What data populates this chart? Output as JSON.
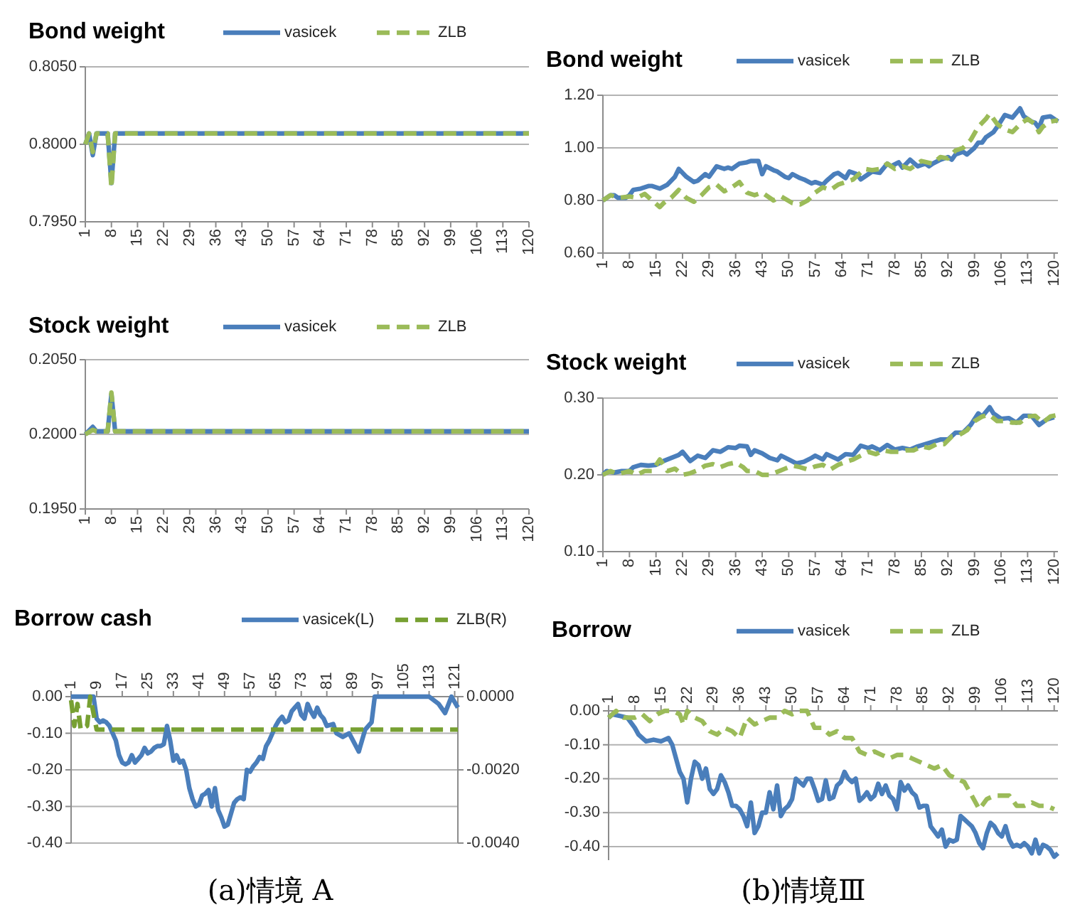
{
  "chart_data": [
    {
      "type": "line",
      "title": "Bond weight",
      "legend": "top",
      "grid": "y",
      "xlim": [
        1,
        120
      ],
      "xticks": [
        1,
        8,
        15,
        22,
        29,
        36,
        43,
        50,
        57,
        64,
        71,
        78,
        85,
        92,
        99,
        106,
        113,
        120
      ],
      "ylim": [
        0.795,
        0.805
      ],
      "yticks": [
        {
          "value": 0.795,
          "label": "0.7950"
        },
        {
          "value": 0.8,
          "label": "0.8000"
        },
        {
          "value": 0.805,
          "label": "0.8050"
        }
      ],
      "series": [
        {
          "name": "vasicek",
          "color": "#4a7ebb",
          "line_style": "solid",
          "x": [
            1,
            2,
            3,
            4,
            7,
            8,
            9,
            120
          ],
          "values": [
            0.8,
            0.8007,
            0.7993,
            0.8007,
            0.8007,
            0.7975,
            0.8007,
            0.8007
          ]
        },
        {
          "name": "ZLB",
          "color": "#9bbb59",
          "line_style": "dashed",
          "x": [
            1,
            2,
            3,
            4,
            7,
            8,
            9,
            120
          ],
          "values": [
            0.8,
            0.8007,
            0.7995,
            0.8007,
            0.8007,
            0.7972,
            0.8007,
            0.8007
          ]
        }
      ]
    },
    {
      "type": "line",
      "title": "Stock weight",
      "legend": "top",
      "grid": "y",
      "xlim": [
        1,
        120
      ],
      "xticks": [
        1,
        8,
        15,
        22,
        29,
        36,
        43,
        50,
        57,
        64,
        71,
        78,
        85,
        92,
        99,
        106,
        113,
        120
      ],
      "ylim": [
        0.195,
        0.205
      ],
      "yticks": [
        {
          "value": 0.195,
          "label": "0.1950"
        },
        {
          "value": 0.2,
          "label": "0.2000"
        },
        {
          "value": 0.205,
          "label": "0.2050"
        }
      ],
      "series": [
        {
          "name": "vasicek",
          "color": "#4a7ebb",
          "line_style": "solid",
          "x": [
            1,
            3,
            4,
            7,
            8,
            9,
            120
          ],
          "values": [
            0.2,
            0.2005,
            0.2002,
            0.2002,
            0.2027,
            0.2002,
            0.2002
          ]
        },
        {
          "name": "ZLB",
          "color": "#9bbb59",
          "line_style": "dashed",
          "x": [
            1,
            3,
            4,
            7,
            8,
            9,
            120
          ],
          "values": [
            0.2,
            0.2003,
            0.2002,
            0.2002,
            0.2028,
            0.2002,
            0.2002
          ]
        }
      ]
    },
    {
      "type": "line",
      "title": "Borrow cash",
      "legend": "top",
      "grid": "y",
      "annotations": [
        "(a)情境 A"
      ],
      "xlim": [
        1,
        122
      ],
      "xticks": [
        1,
        9,
        17,
        25,
        33,
        41,
        49,
        57,
        65,
        73,
        81,
        89,
        97,
        105,
        113,
        121
      ],
      "ylim": [
        -0.4,
        0
      ],
      "yticks": [
        {
          "value": 0,
          "label": "0.00"
        },
        {
          "value": -0.1,
          "label": "-0.10"
        },
        {
          "value": -0.2,
          "label": "-0.20"
        },
        {
          "value": -0.3,
          "label": "-0.30"
        },
        {
          "value": -0.4,
          "label": "-0.40"
        }
      ],
      "y2lim": [
        -0.004,
        0
      ],
      "y2ticks": [
        {
          "value": 0,
          "label": "0.0000"
        },
        {
          "value": -0.002,
          "label": "-0.0020"
        },
        {
          "value": -0.004,
          "label": "-0.0040"
        }
      ],
      "series": [
        {
          "name": "vasicek(L)",
          "color": "#4a7ebb",
          "line_style": "solid",
          "x": [
            1,
            5,
            8,
            9,
            10,
            11,
            12,
            13,
            14,
            15,
            16,
            17,
            18,
            19,
            20,
            21,
            22,
            23,
            24,
            25,
            26,
            27,
            28,
            29,
            30,
            31,
            32,
            33,
            34,
            35,
            36,
            37,
            38,
            39,
            40,
            41,
            42,
            43,
            44,
            45,
            46,
            47,
            48,
            49,
            50,
            51,
            52,
            53,
            54,
            55,
            56,
            57,
            58,
            59,
            60,
            61,
            62,
            63,
            64,
            65,
            66,
            67,
            68,
            69,
            70,
            71,
            72,
            73,
            74,
            75,
            76,
            77,
            78,
            79,
            80,
            81,
            83,
            84,
            86,
            88,
            91,
            93,
            95,
            96,
            98,
            111,
            113,
            116,
            118,
            120,
            122
          ],
          "values": [
            0,
            0,
            0,
            -0.06,
            -0.07,
            -0.065,
            -0.07,
            -0.08,
            -0.1,
            -0.12,
            -0.16,
            -0.18,
            -0.185,
            -0.18,
            -0.16,
            -0.18,
            -0.17,
            -0.16,
            -0.14,
            -0.155,
            -0.15,
            -0.14,
            -0.135,
            -0.135,
            -0.13,
            -0.08,
            -0.12,
            -0.175,
            -0.16,
            -0.18,
            -0.175,
            -0.2,
            -0.25,
            -0.28,
            -0.3,
            -0.295,
            -0.27,
            -0.265,
            -0.255,
            -0.3,
            -0.25,
            -0.31,
            -0.33,
            -0.355,
            -0.35,
            -0.32,
            -0.29,
            -0.28,
            -0.275,
            -0.28,
            -0.2,
            -0.205,
            -0.19,
            -0.18,
            -0.165,
            -0.17,
            -0.135,
            -0.12,
            -0.1,
            -0.08,
            -0.065,
            -0.055,
            -0.07,
            -0.065,
            -0.04,
            -0.03,
            -0.02,
            -0.05,
            -0.06,
            -0.02,
            -0.04,
            -0.055,
            -0.03,
            -0.05,
            -0.06,
            -0.08,
            -0.075,
            -0.1,
            -0.11,
            -0.1,
            -0.15,
            -0.09,
            -0.07,
            0,
            0,
            0,
            0,
            -0.02,
            -0.045,
            0,
            -0.03
          ]
        },
        {
          "name": "ZLB(R)",
          "color": "#77a032",
          "line_style": "dashed",
          "axis": "y2",
          "x": [
            1,
            2,
            3,
            4,
            6,
            7,
            9,
            122
          ],
          "values": [
            -0.0001,
            -0.0008,
            -0.0002,
            -0.0009,
            -0.0008,
            0,
            -0.0009,
            -0.0009
          ]
        }
      ]
    },
    {
      "type": "line",
      "title": "Bond weight",
      "legend": "top",
      "grid": "y",
      "xlim": [
        1,
        121
      ],
      "xticks": [
        1,
        8,
        15,
        22,
        29,
        36,
        43,
        50,
        57,
        64,
        71,
        78,
        85,
        92,
        99,
        106,
        113,
        120
      ],
      "ylim": [
        0.6,
        1.2
      ],
      "yticks": [
        {
          "value": 0.6,
          "label": "0.60"
        },
        {
          "value": 0.8,
          "label": "0.80"
        },
        {
          "value": 1,
          "label": "1.00"
        },
        {
          "value": 1.2,
          "label": "1.20"
        }
      ],
      "series": [
        {
          "name": "vasicek",
          "color": "#4a7ebb",
          "line_style": "solid",
          "x": [
            1,
            2,
            3,
            4,
            5,
            7,
            8,
            9,
            11,
            13,
            14,
            16,
            18,
            20,
            21,
            23,
            25,
            26,
            28,
            29,
            31,
            33,
            34,
            35,
            37,
            39,
            40,
            42,
            43,
            44,
            46,
            47,
            49,
            50,
            51,
            53,
            54,
            56,
            57,
            59,
            60,
            62,
            63,
            65,
            66,
            68,
            69,
            71,
            72,
            74,
            76,
            77,
            79,
            80,
            82,
            84,
            86,
            87,
            88,
            90,
            92,
            93,
            94,
            96,
            97,
            99,
            100,
            101,
            102,
            104,
            105,
            107,
            109,
            111,
            112,
            114,
            115,
            116,
            117,
            119,
            121
          ],
          "values": [
            0.8,
            0.81,
            0.82,
            0.82,
            0.81,
            0.81,
            0.82,
            0.84,
            0.845,
            0.855,
            0.855,
            0.845,
            0.86,
            0.89,
            0.92,
            0.89,
            0.87,
            0.875,
            0.9,
            0.89,
            0.93,
            0.92,
            0.925,
            0.92,
            0.94,
            0.945,
            0.95,
            0.95,
            0.9,
            0.93,
            0.915,
            0.91,
            0.89,
            0.885,
            0.9,
            0.885,
            0.88,
            0.865,
            0.87,
            0.86,
            0.875,
            0.9,
            0.905,
            0.885,
            0.91,
            0.9,
            0.88,
            0.9,
            0.91,
            0.905,
            0.94,
            0.93,
            0.945,
            0.925,
            0.955,
            0.93,
            0.94,
            0.93,
            0.94,
            0.955,
            0.965,
            0.955,
            0.975,
            0.985,
            0.975,
            1.0,
            1.02,
            1.02,
            1.04,
            1.06,
            1.08,
            1.125,
            1.115,
            1.15,
            1.12,
            1.1,
            1.095,
            1.075,
            1.115,
            1.12,
            1.1
          ]
        },
        {
          "name": "ZLB",
          "color": "#9bbb59",
          "line_style": "dashed",
          "x": [
            1,
            3,
            5,
            8,
            10,
            12,
            14,
            16,
            17,
            19,
            21,
            23,
            25,
            27,
            29,
            31,
            33,
            35,
            37,
            39,
            41,
            43,
            46,
            48,
            51,
            53,
            55,
            57,
            59,
            61,
            63,
            65,
            67,
            70,
            72,
            74,
            76,
            78,
            80,
            82,
            85,
            88,
            90,
            92,
            94,
            96,
            98,
            100,
            102,
            103,
            105,
            107,
            109,
            111,
            113,
            115,
            116,
            117,
            119,
            121
          ],
          "values": [
            0.8,
            0.82,
            0.81,
            0.815,
            0.81,
            0.825,
            0.8,
            0.775,
            0.79,
            0.81,
            0.84,
            0.81,
            0.795,
            0.82,
            0.85,
            0.86,
            0.835,
            0.85,
            0.87,
            0.83,
            0.82,
            0.83,
            0.8,
            0.815,
            0.79,
            0.785,
            0.8,
            0.83,
            0.85,
            0.84,
            0.86,
            0.87,
            0.88,
            0.92,
            0.915,
            0.92,
            0.94,
            0.92,
            0.93,
            0.92,
            0.95,
            0.94,
            0.965,
            0.96,
            0.99,
            1.0,
            1.03,
            1.08,
            1.11,
            1.13,
            1.09,
            1.07,
            1.06,
            1.09,
            1.11,
            1.09,
            1.06,
            1.08,
            1.1,
            1.105
          ]
        }
      ]
    },
    {
      "type": "line",
      "title": "Stock weight",
      "legend": "top",
      "grid": "y",
      "xlim": [
        1,
        121
      ],
      "xticks": [
        1,
        8,
        15,
        22,
        29,
        36,
        43,
        50,
        57,
        64,
        71,
        78,
        85,
        92,
        99,
        106,
        113,
        120
      ],
      "ylim": [
        0.1,
        0.3
      ],
      "yticks": [
        {
          "value": 0.1,
          "label": "0.10"
        },
        {
          "value": 0.2,
          "label": "0.20"
        },
        {
          "value": 0.3,
          "label": "0.30"
        }
      ],
      "series": [
        {
          "name": "vasicek",
          "color": "#4a7ebb",
          "line_style": "solid",
          "x": [
            1,
            2,
            4,
            6,
            8,
            9,
            11,
            13,
            15,
            17,
            19,
            21,
            22,
            24,
            26,
            28,
            30,
            32,
            34,
            36,
            37,
            39,
            40,
            41,
            43,
            45,
            47,
            48,
            50,
            52,
            54,
            56,
            57,
            59,
            60,
            63,
            65,
            67,
            69,
            71,
            72,
            74,
            76,
            78,
            80,
            82,
            84,
            86,
            88,
            90,
            92,
            94,
            96,
            98,
            100,
            101,
            103,
            104,
            106,
            108,
            110,
            112,
            114,
            116,
            118,
            120
          ],
          "values": [
            0.2,
            0.205,
            0.203,
            0.205,
            0.205,
            0.21,
            0.213,
            0.212,
            0.213,
            0.218,
            0.222,
            0.226,
            0.23,
            0.218,
            0.225,
            0.222,
            0.232,
            0.23,
            0.236,
            0.235,
            0.238,
            0.237,
            0.226,
            0.232,
            0.228,
            0.222,
            0.219,
            0.225,
            0.22,
            0.215,
            0.217,
            0.222,
            0.225,
            0.22,
            0.227,
            0.22,
            0.227,
            0.226,
            0.238,
            0.235,
            0.237,
            0.232,
            0.239,
            0.233,
            0.235,
            0.233,
            0.237,
            0.24,
            0.243,
            0.246,
            0.246,
            0.255,
            0.255,
            0.265,
            0.28,
            0.276,
            0.288,
            0.28,
            0.273,
            0.274,
            0.268,
            0.277,
            0.277,
            0.265,
            0.272,
            0.275
          ]
        },
        {
          "name": "ZLB",
          "color": "#9bbb59",
          "line_style": "dashed",
          "x": [
            1,
            3,
            5,
            8,
            10,
            12,
            14,
            16,
            17,
            18,
            20,
            22,
            24,
            26,
            28,
            30,
            32,
            34,
            36,
            38,
            39,
            41,
            43,
            45,
            47,
            49,
            51,
            53,
            55,
            57,
            59,
            61,
            63,
            65,
            67,
            69,
            71,
            73,
            75,
            77,
            79,
            81,
            83,
            85,
            87,
            89,
            91,
            93,
            95,
            97,
            99,
            101,
            103,
            105,
            107,
            109,
            111,
            113,
            115,
            117,
            119,
            121
          ],
          "values": [
            0.2,
            0.205,
            0.201,
            0.205,
            0.2,
            0.205,
            0.205,
            0.22,
            0.213,
            0.205,
            0.208,
            0.2,
            0.202,
            0.206,
            0.212,
            0.214,
            0.21,
            0.214,
            0.216,
            0.21,
            0.205,
            0.205,
            0.2,
            0.2,
            0.204,
            0.208,
            0.212,
            0.21,
            0.207,
            0.211,
            0.213,
            0.207,
            0.213,
            0.217,
            0.22,
            0.225,
            0.23,
            0.227,
            0.232,
            0.23,
            0.23,
            0.232,
            0.232,
            0.237,
            0.235,
            0.24,
            0.24,
            0.25,
            0.252,
            0.258,
            0.27,
            0.276,
            0.278,
            0.27,
            0.27,
            0.268,
            0.268,
            0.276,
            0.277,
            0.268,
            0.276,
            0.278
          ]
        }
      ]
    },
    {
      "type": "line",
      "title": "Borrow",
      "legend": "top",
      "grid": "y",
      "annotations": [
        "(b)情境Ⅲ"
      ],
      "xlim": [
        1,
        121
      ],
      "xticks": [
        1,
        8,
        15,
        22,
        29,
        36,
        43,
        50,
        57,
        64,
        71,
        78,
        85,
        92,
        99,
        106,
        113,
        120
      ],
      "ylim": [
        -0.44,
        0
      ],
      "yticks": [
        {
          "value": 0,
          "label": "0.00"
        },
        {
          "value": -0.1,
          "label": "-0.10"
        },
        {
          "value": -0.2,
          "label": "-0.20"
        },
        {
          "value": -0.3,
          "label": "-0.30"
        },
        {
          "value": -0.4,
          "label": "-0.40"
        }
      ],
      "series": [
        {
          "name": "vasicek",
          "color": "#4a7ebb",
          "line_style": "solid",
          "x": [
            1,
            2,
            4,
            6,
            8,
            9,
            10,
            11,
            13,
            15,
            17,
            18,
            19,
            20,
            21,
            22,
            23,
            24,
            25,
            26,
            27,
            28,
            29,
            30,
            31,
            32,
            33,
            34,
            35,
            36,
            37,
            38,
            39,
            40,
            41,
            42,
            43,
            44,
            45,
            46,
            47,
            48,
            49,
            50,
            51,
            52,
            53,
            54,
            55,
            56,
            57,
            58,
            59,
            60,
            61,
            62,
            63,
            64,
            65,
            66,
            67,
            68,
            69,
            70,
            71,
            72,
            73,
            74,
            75,
            76,
            77,
            78,
            79,
            80,
            81,
            82,
            83,
            84,
            85,
            86,
            87,
            88,
            89,
            90,
            91,
            92,
            93,
            94,
            95,
            96,
            97,
            98,
            99,
            100,
            101,
            102,
            103,
            104,
            105,
            106,
            107,
            108,
            109,
            110,
            111,
            112,
            113,
            114,
            115,
            116,
            117,
            118,
            119,
            120,
            121
          ],
          "values": [
            -0.02,
            -0.01,
            -0.015,
            -0.02,
            -0.05,
            -0.07,
            -0.08,
            -0.09,
            -0.085,
            -0.09,
            -0.08,
            -0.1,
            -0.14,
            -0.18,
            -0.2,
            -0.27,
            -0.2,
            -0.15,
            -0.16,
            -0.2,
            -0.17,
            -0.23,
            -0.245,
            -0.23,
            -0.19,
            -0.21,
            -0.24,
            -0.28,
            -0.28,
            -0.29,
            -0.31,
            -0.34,
            -0.27,
            -0.36,
            -0.34,
            -0.3,
            -0.3,
            -0.24,
            -0.29,
            -0.22,
            -0.31,
            -0.29,
            -0.28,
            -0.26,
            -0.2,
            -0.21,
            -0.22,
            -0.2,
            -0.2,
            -0.23,
            -0.265,
            -0.26,
            -0.205,
            -0.26,
            -0.255,
            -0.22,
            -0.21,
            -0.18,
            -0.2,
            -0.21,
            -0.2,
            -0.265,
            -0.255,
            -0.24,
            -0.26,
            -0.25,
            -0.215,
            -0.245,
            -0.22,
            -0.25,
            -0.26,
            -0.29,
            -0.21,
            -0.235,
            -0.22,
            -0.24,
            -0.25,
            -0.285,
            -0.28,
            -0.28,
            -0.34,
            -0.355,
            -0.37,
            -0.35,
            -0.4,
            -0.38,
            -0.385,
            -0.38,
            -0.31,
            -0.32,
            -0.33,
            -0.34,
            -0.36,
            -0.39,
            -0.405,
            -0.36,
            -0.33,
            -0.34,
            -0.36,
            -0.37,
            -0.34,
            -0.38,
            -0.4,
            -0.395,
            -0.4,
            -0.39,
            -0.4,
            -0.42,
            -0.38,
            -0.42,
            -0.395,
            -0.4,
            -0.41,
            -0.43,
            -0.42
          ]
        },
        {
          "name": "ZLB",
          "color": "#9bbb59",
          "line_style": "dashed",
          "x": [
            1,
            3,
            5,
            8,
            10,
            12,
            14,
            16,
            18,
            20,
            21,
            22,
            24,
            26,
            28,
            30,
            32,
            34,
            36,
            37,
            38,
            40,
            42,
            44,
            46,
            48,
            50,
            52,
            54,
            56,
            58,
            60,
            62,
            64,
            66,
            68,
            70,
            72,
            74,
            76,
            78,
            80,
            82,
            84,
            86,
            88,
            90,
            92,
            94,
            96,
            98,
            100,
            102,
            104,
            106,
            108,
            110,
            112,
            114,
            116,
            118,
            120
          ],
          "values": [
            -0.02,
            0,
            -0.02,
            -0.02,
            -0.01,
            -0.03,
            -0.01,
            0,
            0,
            -0.01,
            -0.04,
            0,
            -0.02,
            -0.03,
            -0.06,
            -0.07,
            -0.05,
            -0.06,
            -0.08,
            -0.05,
            -0.02,
            -0.04,
            -0.03,
            -0.02,
            -0.02,
            0,
            -0.01,
            0,
            0,
            -0.05,
            -0.05,
            -0.07,
            -0.06,
            -0.08,
            -0.08,
            -0.12,
            -0.13,
            -0.12,
            -0.13,
            -0.14,
            -0.13,
            -0.13,
            -0.14,
            -0.15,
            -0.16,
            -0.17,
            -0.16,
            -0.19,
            -0.2,
            -0.21,
            -0.25,
            -0.29,
            -0.26,
            -0.25,
            -0.25,
            -0.25,
            -0.28,
            -0.28,
            -0.27,
            -0.28,
            -0.28,
            -0.29
          ]
        }
      ]
    }
  ]
}
